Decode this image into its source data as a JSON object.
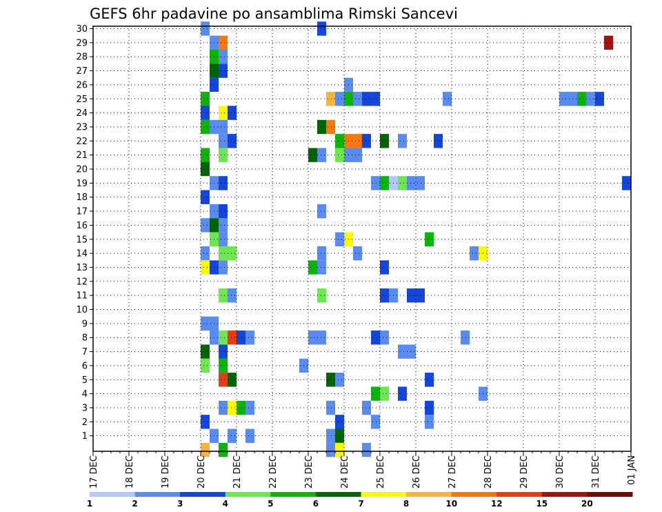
{
  "chart_data": {
    "type": "heatmap",
    "title": "GEFS 6hr padavine po ansamblima Rimski Sancevi",
    "x_ticks": [
      "17 DEC",
      "18 DEC",
      "19 DEC",
      "20 DEC",
      "21 DEC",
      "22 DEC",
      "23 DEC",
      "24 DEC",
      "25 DEC",
      "26 DEC",
      "27 DEC",
      "28 DEC",
      "29 DEC",
      "30 DEC",
      "31 DEC",
      "01 JAN"
    ],
    "y_ticks": [
      1,
      2,
      3,
      4,
      5,
      6,
      7,
      8,
      9,
      10,
      11,
      12,
      13,
      14,
      15,
      16,
      17,
      18,
      19,
      20,
      21,
      22,
      23,
      24,
      25,
      26,
      27,
      28,
      29,
      30
    ],
    "x_unit": "days after 17 DEC, 6-hour steps",
    "grid": true,
    "colorbar": {
      "labels": [
        "1",
        "2",
        "3",
        "4",
        "5",
        "6",
        "7",
        "8",
        "10",
        "12",
        "15",
        "20"
      ],
      "colors": [
        "#b4c8fa",
        "#5a8cf0",
        "#1446dc",
        "#6ee650",
        "#0ab40a",
        "#046404",
        "#fafa00",
        "#fab43c",
        "#fa780a",
        "#e63c14",
        "#a01414",
        "#6e0a0a"
      ]
    },
    "cells": [
      {
        "m": 30,
        "t": 3.0,
        "c": 1
      },
      {
        "m": 30,
        "t": 6.25,
        "c": 2
      },
      {
        "m": 29,
        "t": 3.25,
        "c": 1
      },
      {
        "m": 29,
        "t": 3.5,
        "c": 8
      },
      {
        "m": 29,
        "t": 14.25,
        "c": 10
      },
      {
        "m": 28,
        "t": 3.25,
        "c": 4
      },
      {
        "m": 28,
        "t": 3.5,
        "c": 1
      },
      {
        "m": 27,
        "t": 3.25,
        "c": 5
      },
      {
        "m": 27,
        "t": 3.5,
        "c": 2
      },
      {
        "m": 26,
        "t": 3.25,
        "c": 2
      },
      {
        "m": 26,
        "t": 7.0,
        "c": 1
      },
      {
        "m": 25,
        "t": 3.0,
        "c": 4
      },
      {
        "m": 25,
        "t": 6.5,
        "c": 7
      },
      {
        "m": 25,
        "t": 6.75,
        "c": 1
      },
      {
        "m": 25,
        "t": 7.0,
        "c": 4
      },
      {
        "m": 25,
        "t": 7.25,
        "c": 1
      },
      {
        "m": 25,
        "t": 7.5,
        "c": 2
      },
      {
        "m": 25,
        "t": 7.75,
        "c": 2
      },
      {
        "m": 25,
        "t": 9.75,
        "c": 1
      },
      {
        "m": 25,
        "t": 13.0,
        "c": 1
      },
      {
        "m": 25,
        "t": 13.25,
        "c": 1
      },
      {
        "m": 25,
        "t": 13.5,
        "c": 4
      },
      {
        "m": 25,
        "t": 13.75,
        "c": 1
      },
      {
        "m": 25,
        "t": 14.0,
        "c": 2
      },
      {
        "m": 24,
        "t": 3.0,
        "c": 2
      },
      {
        "m": 24,
        "t": 3.5,
        "c": 6
      },
      {
        "m": 24,
        "t": 3.75,
        "c": 2
      },
      {
        "m": 23,
        "t": 3.0,
        "c": 4
      },
      {
        "m": 23,
        "t": 3.25,
        "c": 1
      },
      {
        "m": 23,
        "t": 3.5,
        "c": 1
      },
      {
        "m": 23,
        "t": 6.25,
        "c": 5
      },
      {
        "m": 23,
        "t": 6.5,
        "c": 8
      },
      {
        "m": 22,
        "t": 3.5,
        "c": 1
      },
      {
        "m": 22,
        "t": 3.75,
        "c": 2
      },
      {
        "m": 22,
        "t": 6.75,
        "c": 4
      },
      {
        "m": 22,
        "t": 7.0,
        "c": 8
      },
      {
        "m": 22,
        "t": 7.25,
        "c": 8
      },
      {
        "m": 22,
        "t": 7.5,
        "c": 2
      },
      {
        "m": 22,
        "t": 8.0,
        "c": 5
      },
      {
        "m": 22,
        "t": 8.5,
        "c": 1
      },
      {
        "m": 22,
        "t": 9.5,
        "c": 2
      },
      {
        "m": 21,
        "t": 3.0,
        "c": 4
      },
      {
        "m": 21,
        "t": 3.5,
        "c": 3
      },
      {
        "m": 21,
        "t": 6.0,
        "c": 5
      },
      {
        "m": 21,
        "t": 6.25,
        "c": 1
      },
      {
        "m": 21,
        "t": 6.75,
        "c": 3
      },
      {
        "m": 21,
        "t": 7.0,
        "c": 1
      },
      {
        "m": 21,
        "t": 7.25,
        "c": 1
      },
      {
        "m": 20,
        "t": 3.0,
        "c": 5
      },
      {
        "m": 19,
        "t": 3.25,
        "c": 1
      },
      {
        "m": 19,
        "t": 3.5,
        "c": 2
      },
      {
        "m": 19,
        "t": 7.75,
        "c": 1
      },
      {
        "m": 19,
        "t": 8.0,
        "c": 4
      },
      {
        "m": 19,
        "t": 8.25,
        "c": 0
      },
      {
        "m": 19,
        "t": 8.5,
        "c": 3
      },
      {
        "m": 19,
        "t": 8.75,
        "c": 1
      },
      {
        "m": 19,
        "t": 9.0,
        "c": 1
      },
      {
        "m": 19,
        "t": 14.75,
        "c": 2
      },
      {
        "m": 18,
        "t": 3.0,
        "c": 2
      },
      {
        "m": 17,
        "t": 3.25,
        "c": 1
      },
      {
        "m": 17,
        "t": 3.5,
        "c": 2
      },
      {
        "m": 17,
        "t": 6.25,
        "c": 1
      },
      {
        "m": 16,
        "t": 3.0,
        "c": 1
      },
      {
        "m": 16,
        "t": 3.25,
        "c": 5
      },
      {
        "m": 16,
        "t": 3.5,
        "c": 1
      },
      {
        "m": 15,
        "t": 3.25,
        "c": 3
      },
      {
        "m": 15,
        "t": 3.5,
        "c": 1
      },
      {
        "m": 15,
        "t": 6.75,
        "c": 1
      },
      {
        "m": 15,
        "t": 7.0,
        "c": 6
      },
      {
        "m": 15,
        "t": 9.25,
        "c": 4
      },
      {
        "m": 14,
        "t": 3.0,
        "c": 1
      },
      {
        "m": 14,
        "t": 3.5,
        "c": 3
      },
      {
        "m": 14,
        "t": 3.75,
        "c": 3
      },
      {
        "m": 14,
        "t": 6.25,
        "c": 1
      },
      {
        "m": 14,
        "t": 7.25,
        "c": 1
      },
      {
        "m": 14,
        "t": 10.5,
        "c": 1
      },
      {
        "m": 14,
        "t": 10.75,
        "c": 6
      },
      {
        "m": 13,
        "t": 3.0,
        "c": 6
      },
      {
        "m": 13,
        "t": 3.25,
        "c": 2
      },
      {
        "m": 13,
        "t": 3.5,
        "c": 1
      },
      {
        "m": 13,
        "t": 6.0,
        "c": 4
      },
      {
        "m": 13,
        "t": 6.25,
        "c": 1
      },
      {
        "m": 13,
        "t": 8.0,
        "c": 2
      },
      {
        "m": 11,
        "t": 3.5,
        "c": 3
      },
      {
        "m": 11,
        "t": 3.75,
        "c": 1
      },
      {
        "m": 11,
        "t": 6.25,
        "c": 3
      },
      {
        "m": 11,
        "t": 8.0,
        "c": 2
      },
      {
        "m": 11,
        "t": 8.25,
        "c": 1
      },
      {
        "m": 11,
        "t": 8.75,
        "c": 2
      },
      {
        "m": 11,
        "t": 9.0,
        "c": 2
      },
      {
        "m": 9,
        "t": 3.0,
        "c": 1
      },
      {
        "m": 9,
        "t": 3.25,
        "c": 1
      },
      {
        "m": 8,
        "t": 3.25,
        "c": 1
      },
      {
        "m": 8,
        "t": 3.5,
        "c": 3
      },
      {
        "m": 8,
        "t": 3.75,
        "c": 9
      },
      {
        "m": 8,
        "t": 4.0,
        "c": 2
      },
      {
        "m": 8,
        "t": 4.25,
        "c": 1
      },
      {
        "m": 8,
        "t": 6.0,
        "c": 1
      },
      {
        "m": 8,
        "t": 6.25,
        "c": 1
      },
      {
        "m": 8,
        "t": 7.75,
        "c": 2
      },
      {
        "m": 8,
        "t": 8.0,
        "c": 1
      },
      {
        "m": 8,
        "t": 10.25,
        "c": 1
      },
      {
        "m": 7,
        "t": 3.0,
        "c": 5
      },
      {
        "m": 7,
        "t": 3.5,
        "c": 2
      },
      {
        "m": 7,
        "t": 8.5,
        "c": 1
      },
      {
        "m": 7,
        "t": 8.75,
        "c": 1
      },
      {
        "m": 6,
        "t": 3.0,
        "c": 3
      },
      {
        "m": 6,
        "t": 3.5,
        "c": 4
      },
      {
        "m": 6,
        "t": 5.75,
        "c": 1
      },
      {
        "m": 5,
        "t": 3.5,
        "c": 9
      },
      {
        "m": 5,
        "t": 3.75,
        "c": 5
      },
      {
        "m": 5,
        "t": 6.5,
        "c": 5
      },
      {
        "m": 5,
        "t": 6.75,
        "c": 1
      },
      {
        "m": 5,
        "t": 9.25,
        "c": 2
      },
      {
        "m": 4,
        "t": 7.75,
        "c": 4
      },
      {
        "m": 4,
        "t": 8.0,
        "c": 3
      },
      {
        "m": 4,
        "t": 8.5,
        "c": 2
      },
      {
        "m": 4,
        "t": 10.75,
        "c": 1
      },
      {
        "m": 3,
        "t": 3.5,
        "c": 1
      },
      {
        "m": 3,
        "t": 3.75,
        "c": 6
      },
      {
        "m": 3,
        "t": 4.0,
        "c": 4
      },
      {
        "m": 3,
        "t": 4.25,
        "c": 1
      },
      {
        "m": 3,
        "t": 6.5,
        "c": 1
      },
      {
        "m": 3,
        "t": 7.5,
        "c": 1
      },
      {
        "m": 3,
        "t": 9.25,
        "c": 2
      },
      {
        "m": 2,
        "t": 3.0,
        "c": 2
      },
      {
        "m": 2,
        "t": 6.75,
        "c": 2
      },
      {
        "m": 2,
        "t": 7.75,
        "c": 1
      },
      {
        "m": 2,
        "t": 9.25,
        "c": 1
      },
      {
        "m": 1,
        "t": 3.25,
        "c": 1
      },
      {
        "m": 1,
        "t": 3.75,
        "c": 1
      },
      {
        "m": 1,
        "t": 4.25,
        "c": 1
      },
      {
        "m": 1,
        "t": 6.5,
        "c": 1
      },
      {
        "m": 1,
        "t": 6.75,
        "c": 5
      },
      {
        "m": 0,
        "t": 3.0,
        "c": 7
      },
      {
        "m": 0,
        "t": 3.5,
        "c": 4
      },
      {
        "m": 0,
        "t": 6.5,
        "c": 1
      },
      {
        "m": 0,
        "t": 6.75,
        "c": 6
      },
      {
        "m": 0,
        "t": 7.5,
        "c": 1
      }
    ]
  }
}
